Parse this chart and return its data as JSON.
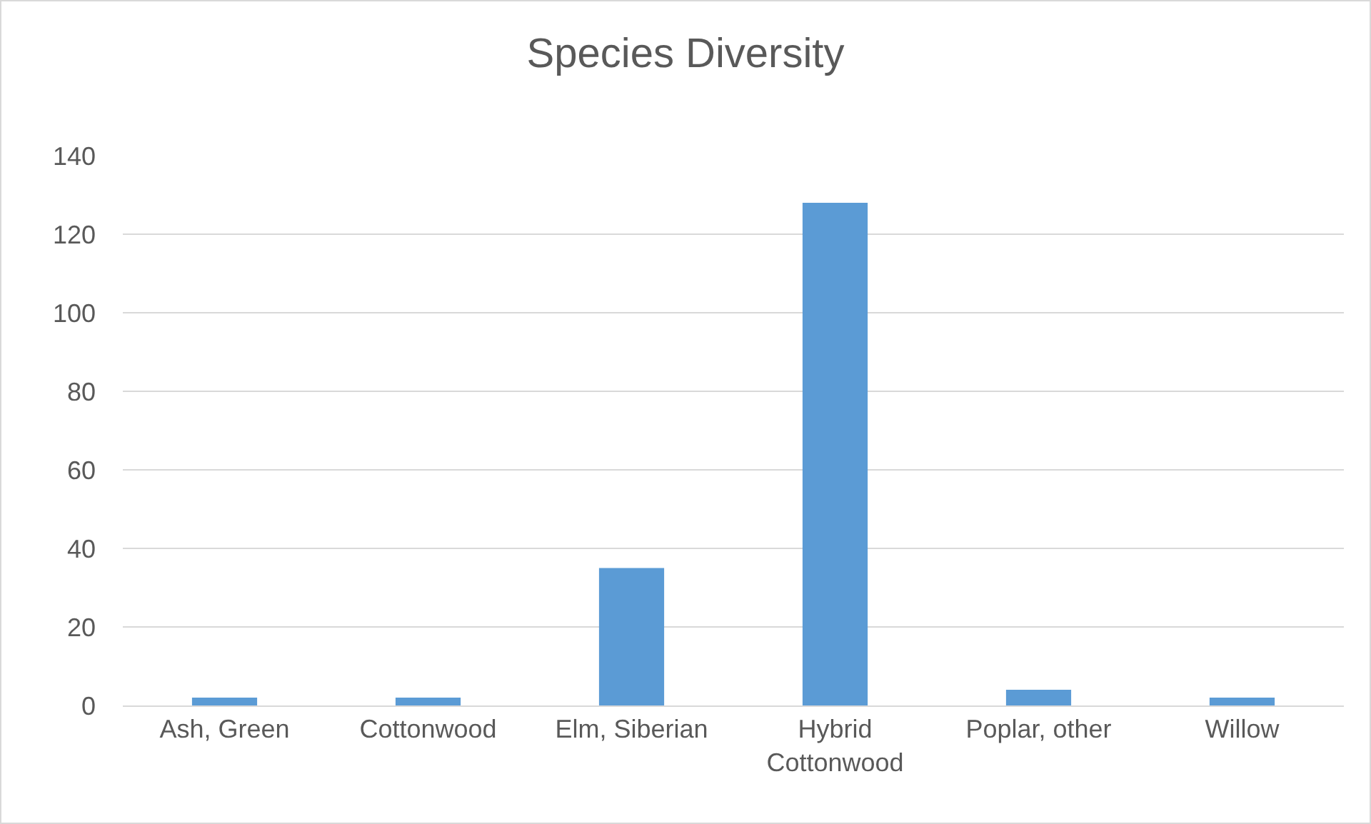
{
  "chart_data": {
    "type": "bar",
    "title": "Species Diversity",
    "categories": [
      "Ash, Green",
      "Cottonwood",
      "Elm, Siberian",
      "Hybrid Cottonwood",
      "Poplar, other",
      "Willow"
    ],
    "values": [
      2,
      2,
      35,
      128,
      4,
      2
    ],
    "color": "#5b9bd5",
    "ylim": [
      0,
      140
    ],
    "yticks": [
      0,
      20,
      40,
      60,
      80,
      100,
      120,
      140
    ],
    "grid": "y",
    "legend": false
  }
}
